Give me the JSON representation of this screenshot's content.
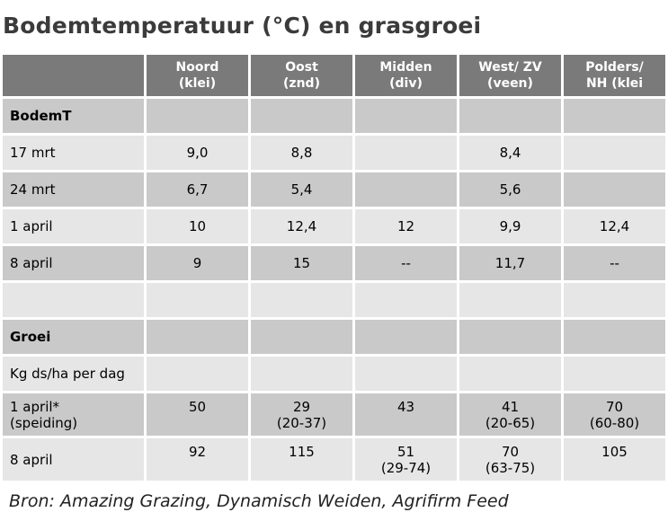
{
  "title": "Bodemtemperatuur (°C) en grasgroei",
  "columns": [
    {
      "line1": "Noord",
      "line2": "(klei)"
    },
    {
      "line1": "Oost",
      "line2": "(znd)"
    },
    {
      "line1": "Midden",
      "line2": "(div)"
    },
    {
      "line1": "West/ ZV",
      "line2": "(veen)"
    },
    {
      "line1": "Polders/",
      "line2": "NH (klei"
    }
  ],
  "rows": [
    {
      "label": "BodemT",
      "values": [
        "",
        "",
        "",
        "",
        ""
      ]
    },
    {
      "label": "17 mrt",
      "values": [
        "9,0",
        "8,8",
        "",
        "8,4",
        ""
      ]
    },
    {
      "label": "24 mrt",
      "values": [
        "6,7",
        "5,4",
        "",
        "5,6",
        ""
      ]
    },
    {
      "label": "1 april",
      "values": [
        "10",
        "12,4",
        "12",
        "9,9",
        "12,4"
      ]
    },
    {
      "label": "8 april",
      "values": [
        "9",
        "15",
        "--",
        "11,7",
        "--"
      ]
    },
    {
      "label": "",
      "values": [
        "",
        "",
        "",
        "",
        ""
      ]
    },
    {
      "label": "Groei",
      "values": [
        "",
        "",
        "",
        "",
        ""
      ]
    },
    {
      "label": "Kg ds/ha per dag",
      "values": [
        "",
        "",
        "",
        "",
        ""
      ]
    },
    {
      "label": "1 april*",
      "label2": "(speiding)",
      "values": [
        {
          "v": "50",
          "r": ""
        },
        {
          "v": "29",
          "r": "(20-37)"
        },
        {
          "v": "43",
          "r": ""
        },
        {
          "v": "41",
          "r": "(20-65)"
        },
        {
          "v": "70",
          "r": "(60-80)"
        }
      ]
    },
    {
      "label": "8 april",
      "values": [
        {
          "v": "92",
          "r": ""
        },
        {
          "v": "115",
          "r": ""
        },
        {
          "v": "51",
          "r": "(29-74)"
        },
        {
          "v": "70",
          "r": "(63-75)"
        },
        {
          "v": "105",
          "r": ""
        }
      ]
    }
  ],
  "source": "Bron: Amazing Grazing, Dynamisch Weiden, Agrifirm Feed"
}
